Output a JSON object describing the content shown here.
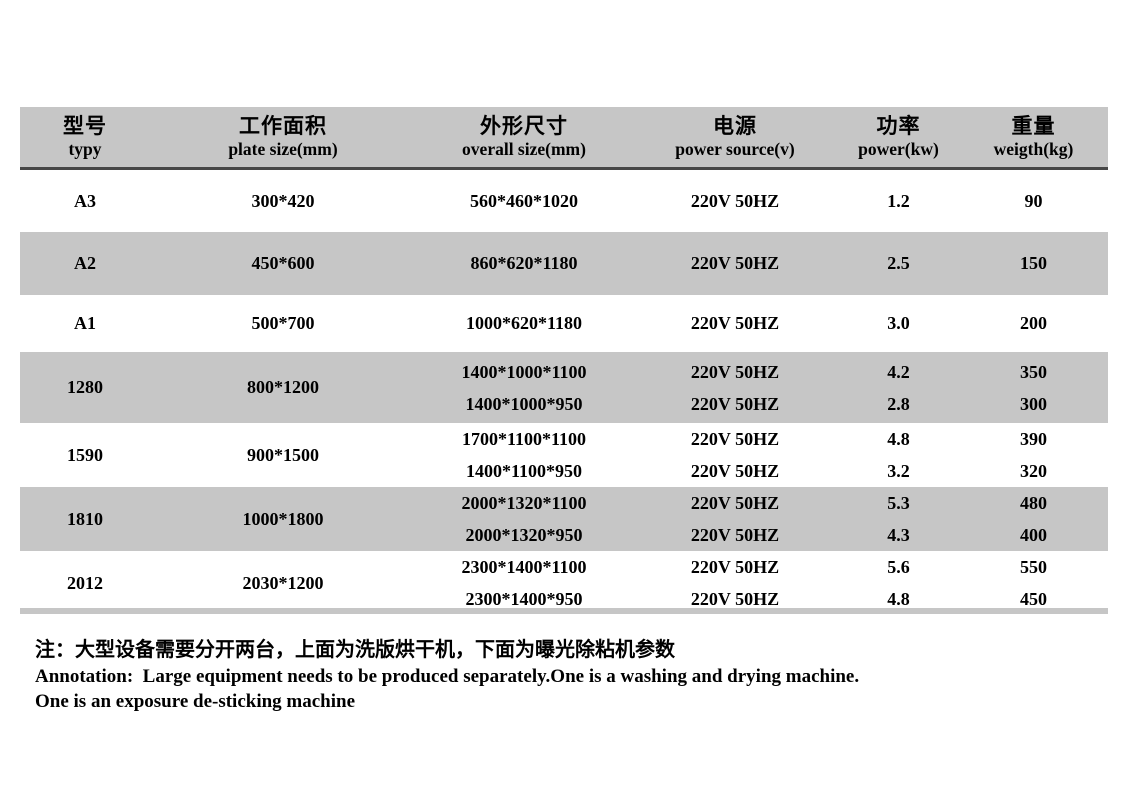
{
  "table": {
    "header": {
      "columns": [
        {
          "zh": "型号",
          "en": "typy"
        },
        {
          "zh": "工作面积",
          "en": "plate size(mm)"
        },
        {
          "zh": "外形尺寸",
          "en": "overall size(mm)"
        },
        {
          "zh": "电源",
          "en": "power source(v)"
        },
        {
          "zh": "功率",
          "en": "power(kw)"
        },
        {
          "zh": "重量",
          "en": "weigth(kg)"
        }
      ]
    },
    "rows": [
      {
        "model": "A3",
        "plate_size": "300*420",
        "overall_size": [
          "560*460*1020"
        ],
        "power_source": [
          "220V 50HZ"
        ],
        "power": [
          "1.2"
        ],
        "weight": [
          "90"
        ]
      },
      {
        "model": "A2",
        "plate_size": "450*600",
        "overall_size": [
          "860*620*1180"
        ],
        "power_source": [
          "220V 50HZ"
        ],
        "power": [
          "2.5"
        ],
        "weight": [
          "150"
        ]
      },
      {
        "model": "A1",
        "plate_size": "500*700",
        "overall_size": [
          "1000*620*1180"
        ],
        "power_source": [
          "220V 50HZ"
        ],
        "power": [
          "3.0"
        ],
        "weight": [
          "200"
        ]
      },
      {
        "model": "1280",
        "plate_size": "800*1200",
        "overall_size": [
          "1400*1000*1100",
          "1400*1000*950"
        ],
        "power_source": [
          "220V 50HZ",
          "220V 50HZ"
        ],
        "power": [
          "4.2",
          "2.8"
        ],
        "weight": [
          "350",
          "300"
        ]
      },
      {
        "model": "1590",
        "plate_size": "900*1500",
        "overall_size": [
          "1700*1100*1100",
          "1400*1100*950"
        ],
        "power_source": [
          "220V 50HZ",
          "220V 50HZ"
        ],
        "power": [
          "4.8",
          "3.2"
        ],
        "weight": [
          "390",
          "320"
        ]
      },
      {
        "model": "1810",
        "plate_size": "1000*1800",
        "overall_size": [
          "2000*1320*1100",
          "2000*1320*950"
        ],
        "power_source": [
          "220V 50HZ",
          "220V 50HZ"
        ],
        "power": [
          "5.3",
          "4.3"
        ],
        "weight": [
          "480",
          "400"
        ]
      },
      {
        "model": "2012",
        "plate_size": "2030*1200",
        "overall_size": [
          "2300*1400*1100",
          "2300*1400*950"
        ],
        "power_source": [
          "220V 50HZ",
          "220V 50HZ"
        ],
        "power": [
          "5.6",
          "4.8"
        ],
        "weight": [
          "550",
          "450"
        ]
      }
    ]
  },
  "annotation": {
    "zh": "注：大型设备需要分开两台，上面为洗版烘干机，下面为曝光除粘机参数",
    "en_line1": "Annotation:  Large equipment needs to be produced separately.One is a washing and drying machine.",
    "en_line2": "One is an exposure de-sticking machine"
  },
  "colors": {
    "stripe": "#c6c6c6",
    "header_border": "#474747",
    "text": "#000000",
    "background": "#ffffff"
  }
}
